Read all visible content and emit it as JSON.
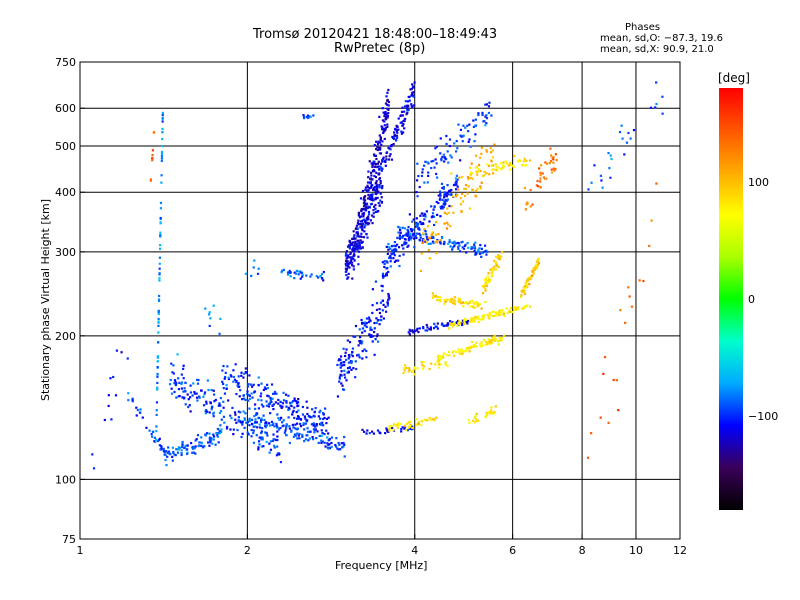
{
  "header": {
    "title_line1": "Tromsø 20120421 18:48:00–18:49:43",
    "title_line2": "RwPretec (8p)",
    "phases_title": "Phases",
    "phases_o": "mean, sd,O: −87.3, 19.6",
    "phases_x": "mean, sd,X:  90.9, 21.0"
  },
  "chart_data": {
    "type": "scatter",
    "xlabel": "Frequency [MHz]",
    "ylabel": "Stationary phase Virtual Height [km]",
    "xscale": "log",
    "yscale": "log",
    "xlim": [
      1,
      12
    ],
    "ylim": [
      75,
      750
    ],
    "xticks": [
      1,
      2,
      4,
      6,
      8,
      10,
      12
    ],
    "yticks": [
      75,
      100,
      200,
      300,
      400,
      500,
      600,
      750
    ],
    "xgrid": [
      2,
      4,
      6,
      8,
      10
    ],
    "ygrid": [
      100,
      200,
      300,
      400,
      500,
      600
    ],
    "grid": true,
    "colorbar": {
      "label": "[deg]",
      "range": [
        -180,
        180
      ],
      "ticks": [
        100,
        0,
        -100
      ],
      "colors": [
        "#000000",
        "#3a005a",
        "#0000ff",
        "#00aaff",
        "#00ffcc",
        "#00ff00",
        "#aaff00",
        "#ffff00",
        "#ffaa00",
        "#ff5500",
        "#ff0000"
      ]
    },
    "series": [
      {
        "x_range": [
          1.22,
          1.43
        ],
        "y_range": [
          150,
          112
        ],
        "count": 36,
        "spread": 0.03,
        "phase": -95
      },
      {
        "x_range": [
          1.43,
          1.8
        ],
        "y_range": [
          112,
          125
        ],
        "count": 90,
        "spread": 0.04,
        "phase": -90
      },
      {
        "x_range": [
          1.45,
          2.3
        ],
        "y_range": [
          160,
          118
        ],
        "count": 190,
        "spread": 0.09,
        "phase": -98
      },
      {
        "x_range": [
          1.8,
          2.8
        ],
        "y_range": [
          165,
          130
        ],
        "count": 210,
        "spread": 0.08,
        "phase": -100
      },
      {
        "x_range": [
          2.0,
          3.0
        ],
        "y_range": [
          135,
          118
        ],
        "count": 130,
        "spread": 0.05,
        "phase": -95
      },
      {
        "x_range": [
          2.3,
          2.75
        ],
        "y_range": [
          272,
          266
        ],
        "count": 35,
        "spread": 0.02,
        "phase": -88
      },
      {
        "x_range": [
          2.5,
          2.7
        ],
        "y_range": [
          578,
          575
        ],
        "count": 10,
        "spread": 0.01,
        "phase": -90
      },
      {
        "x_range": [
          1.37,
          1.41
        ],
        "y_range": [
          120,
          620
        ],
        "count": 70,
        "spread": 0.01,
        "phase": -75
      },
      {
        "x_range": [
          1.34,
          1.36
        ],
        "y_range": [
          420,
          550
        ],
        "count": 10,
        "spread": 0.01,
        "phase": 140
      },
      {
        "x_range": [
          2.9,
          3.6
        ],
        "y_range": [
          160,
          240
        ],
        "count": 150,
        "spread": 0.12,
        "phase": -105
      },
      {
        "x_range": [
          3.0,
          3.5
        ],
        "y_range": [
          280,
          420
        ],
        "count": 210,
        "spread": 0.1,
        "phase": -112
      },
      {
        "x_range": [
          3.1,
          3.6
        ],
        "y_range": [
          300,
          620
        ],
        "count": 190,
        "spread": 0.1,
        "phase": -118
      },
      {
        "x_range": [
          3.4,
          4.0
        ],
        "y_range": [
          420,
          650
        ],
        "count": 110,
        "spread": 0.06,
        "phase": -110
      },
      {
        "x_range": [
          3.5,
          4.8
        ],
        "y_range": [
          280,
          420
        ],
        "count": 190,
        "spread": 0.07,
        "phase": -100
      },
      {
        "x_range": [
          3.7,
          5.4
        ],
        "y_range": [
          330,
          300
        ],
        "count": 110,
        "spread": 0.03,
        "phase": -92
      },
      {
        "x_range": [
          4.0,
          5.5
        ],
        "y_range": [
          420,
          600
        ],
        "count": 90,
        "spread": 0.08,
        "phase": -95
      },
      {
        "x_range": [
          3.2,
          4.0
        ],
        "y_range": [
          125,
          128
        ],
        "count": 30,
        "spread": 0.015,
        "phase": -108
      },
      {
        "x_range": [
          3.9,
          5.0
        ],
        "y_range": [
          205,
          215
        ],
        "count": 60,
        "spread": 0.015,
        "phase": -110
      },
      {
        "x_range": [
          3.8,
          4.6
        ],
        "y_range": [
          168,
          178
        ],
        "count": 35,
        "spread": 0.03,
        "phase": 85
      },
      {
        "x_range": [
          4.4,
          5.8
        ],
        "y_range": [
          180,
          198
        ],
        "count": 80,
        "spread": 0.02,
        "phase": 80
      },
      {
        "x_range": [
          4.3,
          5.4
        ],
        "y_range": [
          240,
          230
        ],
        "count": 60,
        "spread": 0.02,
        "phase": 88
      },
      {
        "x_range": [
          4.6,
          6.5
        ],
        "y_range": [
          210,
          232
        ],
        "count": 90,
        "spread": 0.015,
        "phase": 78
      },
      {
        "x_range": [
          6.2,
          6.7
        ],
        "y_range": [
          240,
          290
        ],
        "count": 50,
        "spread": 0.025,
        "phase": 95
      },
      {
        "x_range": [
          5.3,
          5.75
        ],
        "y_range": [
          250,
          300
        ],
        "count": 50,
        "spread": 0.04,
        "phase": 90
      },
      {
        "x_range": [
          3.6,
          4.4
        ],
        "y_range": [
          128,
          134
        ],
        "count": 40,
        "spread": 0.02,
        "phase": 82
      },
      {
        "x_range": [
          5.0,
          5.6
        ],
        "y_range": [
          132,
          140
        ],
        "count": 25,
        "spread": 0.02,
        "phase": 85
      },
      {
        "x_range": [
          4.1,
          5.6
        ],
        "y_range": [
          300,
          500
        ],
        "count": 90,
        "spread": 0.12,
        "phase": 105
      },
      {
        "x_range": [
          5.0,
          6.5
        ],
        "y_range": [
          440,
          470
        ],
        "count": 50,
        "spread": 0.03,
        "phase": 80
      },
      {
        "x_range": [
          6.3,
          7.2
        ],
        "y_range": [
          380,
          480
        ],
        "count": 40,
        "spread": 0.08,
        "phase": 130
      },
      {
        "x_range": [
          7.8,
          11.2
        ],
        "y_range": [
          380,
          650
        ],
        "count": 25,
        "spread": 0.1,
        "phase": -90
      },
      {
        "x_range": [
          8.0,
          11.2
        ],
        "y_range": [
          90,
          420
        ],
        "count": 20,
        "spread": 0.3,
        "phase": 140
      },
      {
        "x_range": [
          1.05,
          1.25
        ],
        "y_range": [
          105,
          220
        ],
        "count": 12,
        "spread": 0.15,
        "phase": -110
      },
      {
        "x_range": [
          1.45,
          2.2
        ],
        "y_range": [
          180,
          300
        ],
        "count": 16,
        "spread": 0.12,
        "phase": -80
      }
    ]
  }
}
